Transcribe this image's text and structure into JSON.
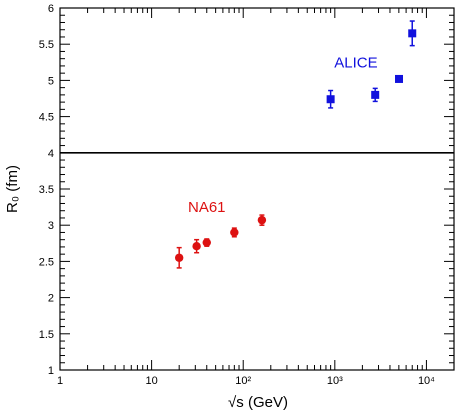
{
  "chart_data": {
    "type": "scatter",
    "title": "",
    "xlabel": "√s (GeV)",
    "ylabel": "R₀ (fm)",
    "xscale": "log",
    "xlim": [
      1,
      20000
    ],
    "ylim": [
      1,
      6
    ],
    "grid": false,
    "x_tick_labels": [
      {
        "x": 1,
        "label": "1"
      },
      {
        "x": 10,
        "label": "10"
      },
      {
        "x": 100,
        "label": "10²"
      },
      {
        "x": 1000,
        "label": "10³"
      },
      {
        "x": 10000,
        "label": "10⁴"
      }
    ],
    "y_tick_labels": [
      "1",
      "1.5",
      "2",
      "2.5",
      "3",
      "3.5",
      "4",
      "4.5",
      "5",
      "5.5",
      "6"
    ],
    "reference_line": {
      "y": 4.0,
      "color": "#000000"
    },
    "series": [
      {
        "name": "NA61",
        "color": "#dd1111",
        "marker": "circle",
        "points": [
          {
            "x": 20,
            "y": 2.55,
            "err": 0.14
          },
          {
            "x": 31,
            "y": 2.71,
            "err": 0.09
          },
          {
            "x": 40,
            "y": 2.76,
            "err": 0.05
          },
          {
            "x": 80,
            "y": 2.9,
            "err": 0.06
          },
          {
            "x": 160,
            "y": 3.07,
            "err": 0.07
          }
        ]
      },
      {
        "name": "ALICE",
        "color": "#1111dd",
        "marker": "square",
        "points": [
          {
            "x": 900,
            "y": 4.74,
            "err": 0.12
          },
          {
            "x": 2760,
            "y": 4.8,
            "err": 0.09
          },
          {
            "x": 5020,
            "y": 5.02,
            "err": 0.02
          },
          {
            "x": 7000,
            "y": 5.65,
            "err": 0.17
          }
        ]
      }
    ]
  }
}
